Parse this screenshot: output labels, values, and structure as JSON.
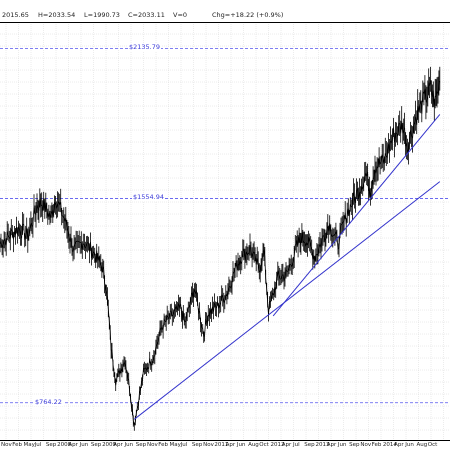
{
  "header": {
    "open": "2015.65",
    "high": "H=2033.54",
    "low": "L=1990.73",
    "close": "C=2033.11",
    "volume": "V=0",
    "change": "Chg=+18.22 (+0.9%)"
  },
  "colors": {
    "price": "#000000",
    "trendline": "#3333cc",
    "level": "#5555ee",
    "grid": "#d8d8d8"
  },
  "chart_data": {
    "type": "line",
    "title": "",
    "xlabel": "",
    "ylabel": "",
    "x": [
      "2006-10",
      "2006-12",
      "2007-02",
      "2007-04",
      "2007-06",
      "2007-07",
      "2007-09",
      "2007-10",
      "2007-12",
      "2008-02",
      "2008-04",
      "2008-06",
      "2008-08",
      "2008-09",
      "2008-10",
      "2008-11",
      "2009-01",
      "2009-02",
      "2009-03",
      "2009-05",
      "2009-07",
      "2009-09",
      "2009-11",
      "2010-01",
      "2010-02",
      "2010-04",
      "2010-06",
      "2010-07",
      "2010-09",
      "2010-11",
      "2011-01",
      "2011-02",
      "2011-04",
      "2011-06",
      "2011-07",
      "2011-08",
      "2011-10",
      "2011-12",
      "2012-02",
      "2012-03",
      "2012-04",
      "2012-06",
      "2012-08",
      "2012-09",
      "2012-11",
      "2013-01",
      "2013-03",
      "2013-05",
      "2013-06",
      "2013-07",
      "2013-09",
      "2013-11",
      "2014-01",
      "2014-02",
      "2014-04",
      "2014-06",
      "2014-07",
      "2014-08",
      "2014-09"
    ],
    "series": [
      {
        "values": [
          1380,
          1410,
          1440,
          1410,
          1525,
          1540,
          1480,
          1560,
          1470,
          1350,
          1390,
          1350,
          1290,
          1210,
          980,
          850,
          930,
          820,
          680,
          880,
          940,
          1060,
          1100,
          1130,
          1070,
          1210,
          1030,
          1110,
          1140,
          1190,
          1290,
          1330,
          1360,
          1280,
          1350,
          1120,
          1250,
          1260,
          1360,
          1400,
          1400,
          1330,
          1410,
          1460,
          1380,
          1500,
          1570,
          1650,
          1590,
          1680,
          1700,
          1800,
          1840,
          1760,
          1880,
          1950,
          1980,
          1925,
          2010
        ]
      }
    ],
    "levels": [
      2135.79,
      1554.94,
      764.22
    ],
    "level_labels": [
      "$2135.79",
      "$1554.94",
      "$764.22"
    ],
    "trendlines": [
      {
        "start": [
          "2009-03",
          700
        ],
        "end": [
          "2014-09",
          1620
        ]
      },
      {
        "start": [
          "2011-09",
          1100
        ],
        "end": [
          "2014-09",
          1880
        ]
      }
    ],
    "x_tick_labels": [
      "Nov",
      "Feb",
      "May",
      "Jul",
      "Sep",
      "2008",
      "Apr",
      "Jun",
      "Sep",
      "2009",
      "Apr",
      "Jun",
      "Sep",
      "Nov",
      "Feb",
      "May",
      "Jul",
      "Sep",
      "Nov",
      "2011",
      "Apr",
      "Jun",
      "Aug",
      "Oct",
      "2012",
      "Apr",
      "Jul",
      "Sep",
      "2013",
      "Apr",
      "Jun",
      "Sep",
      "Nov",
      "Feb",
      "2014",
      "Apr",
      "Jun",
      "Aug",
      "Oct"
    ],
    "grid": true
  }
}
